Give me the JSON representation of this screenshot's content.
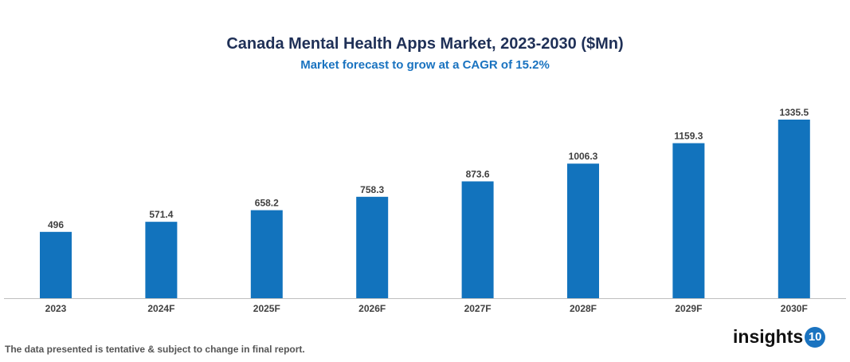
{
  "chart_data": {
    "type": "bar",
    "title": "Canada Mental Health Apps Market, 2023-2030 ($Mn)",
    "subtitle": "Market forecast to grow at a CAGR of 15.2%",
    "categories": [
      "2023",
      "2024F",
      "2025F",
      "2026F",
      "2027F",
      "2028F",
      "2029F",
      "2030F"
    ],
    "values": [
      496,
      571.4,
      658.2,
      758.3,
      873.6,
      1006.3,
      1159.3,
      1335.5
    ],
    "labels": [
      "496",
      "571.4",
      "658.2",
      "758.3",
      "873.6",
      "1006.3",
      "1159.3",
      "1335.5"
    ],
    "xlabel": "",
    "ylabel": "",
    "ylim": [
      0,
      1335.5
    ],
    "grid": false,
    "bar_color": "#1273bd"
  },
  "footer": {
    "note": "The data presented is tentative & subject to change in final report."
  },
  "logo": {
    "text": "insights",
    "badge": "10"
  }
}
